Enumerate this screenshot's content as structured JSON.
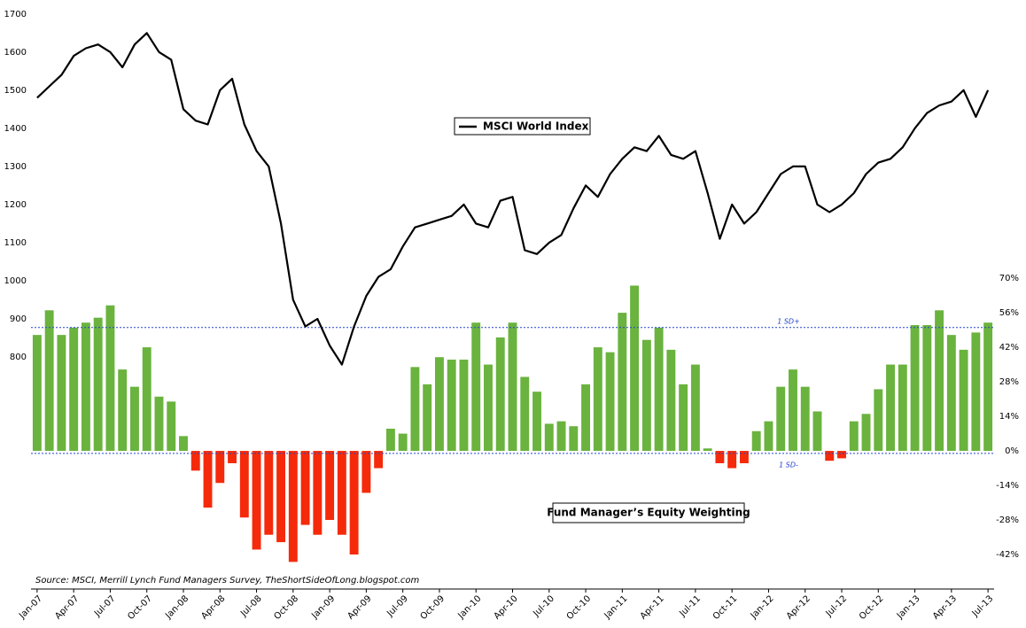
{
  "chart_data": {
    "type": "bar",
    "source": "Source: MSCI, Merrill Lynch Fund Managers Survey, TheShortSideOfLong.blogspot.com",
    "categories": [
      "Jan-07",
      null,
      null,
      "Apr-07",
      null,
      null,
      "Jul-07",
      null,
      null,
      "Oct-07",
      null,
      null,
      "Jan-08",
      null,
      null,
      "Apr-08",
      null,
      null,
      "Jul-08",
      null,
      null,
      "Oct-08",
      null,
      null,
      "Jan-09",
      null,
      null,
      "Apr-09",
      null,
      null,
      "Jul-09",
      null,
      null,
      "Oct-09",
      null,
      null,
      "Jan-10",
      null,
      null,
      "Apr-10",
      null,
      null,
      "Jul-10",
      null,
      null,
      "Oct-10",
      null,
      null,
      "Jan-11",
      null,
      null,
      "Apr-11",
      null,
      null,
      "Jul-11",
      null,
      null,
      "Oct-11",
      null,
      null,
      "Jan-12",
      null,
      null,
      "Apr-12",
      null,
      null,
      "Jul-12",
      null,
      null,
      "Oct-12",
      null,
      null,
      "Jan-13",
      null,
      null,
      "Apr-13",
      null,
      null,
      "Jul-13"
    ],
    "series": [
      {
        "name": "MSCI World Index",
        "type": "line",
        "axis": "y",
        "color": "#000000",
        "values": [
          1480,
          1510,
          1540,
          1590,
          1610,
          1620,
          1600,
          1560,
          1620,
          1650,
          1600,
          1580,
          1450,
          1420,
          1410,
          1500,
          1530,
          1410,
          1340,
          1300,
          1150,
          950,
          880,
          900,
          830,
          780,
          880,
          960,
          1010,
          1030,
          1090,
          1140,
          1150,
          1160,
          1170,
          1200,
          1150,
          1140,
          1210,
          1220,
          1080,
          1070,
          1100,
          1120,
          1190,
          1250,
          1220,
          1280,
          1320,
          1350,
          1340,
          1380,
          1330,
          1320,
          1340,
          1230,
          1110,
          1200,
          1150,
          1180,
          1230,
          1280,
          1300,
          1300,
          1200,
          1180,
          1200,
          1230,
          1280,
          1310,
          1320,
          1350,
          1400,
          1440,
          1460,
          1470,
          1500,
          1430,
          1500
        ]
      },
      {
        "name": "Fund Manager’s Equity Weighting",
        "type": "bar",
        "axis": "y2",
        "color": "#6ab33e",
        "negative_color": "#f52a0a",
        "values": [
          47,
          57,
          47,
          50,
          52,
          54,
          59,
          33,
          26,
          42,
          22,
          20,
          6,
          -8,
          -23,
          -13,
          -5,
          -27,
          -40,
          -34,
          -37,
          -45,
          -30,
          -34,
          -28,
          -34,
          -42,
          -17,
          -7,
          9,
          7,
          34,
          27,
          38,
          37,
          37,
          52,
          35,
          46,
          52,
          30,
          24,
          11,
          12,
          10,
          27,
          42,
          40,
          56,
          67,
          45,
          50,
          41,
          27,
          35,
          1,
          -5,
          -7,
          -5,
          8,
          12,
          26,
          33,
          26,
          16,
          -4,
          -3,
          12,
          15,
          25,
          35,
          35,
          51,
          51,
          57,
          47,
          41,
          48,
          52
        ]
      }
    ],
    "ylim": [
      191,
      1725
    ],
    "yticks": [
      800,
      900,
      1000,
      1100,
      1200,
      1300,
      1400,
      1500,
      1600,
      1700
    ],
    "y2lim": [
      -56,
      181
    ],
    "y2ticks": [
      {
        "value": -42,
        "label": "-42%"
      },
      {
        "value": -28,
        "label": "-28%"
      },
      {
        "value": -14,
        "label": "-14%"
      },
      {
        "value": 0,
        "label": "0%"
      },
      {
        "value": 14,
        "label": "14%"
      },
      {
        "value": 28,
        "label": "28%"
      },
      {
        "value": 42,
        "label": "42%"
      },
      {
        "value": 56,
        "label": "56%"
      },
      {
        "value": 70,
        "label": "70%"
      }
    ],
    "reference_lines": [
      {
        "label": "1 SD+",
        "value": 50,
        "color": "#2244cc"
      },
      {
        "label": "1 SD-",
        "value": -1,
        "color": "#2244cc"
      }
    ]
  }
}
